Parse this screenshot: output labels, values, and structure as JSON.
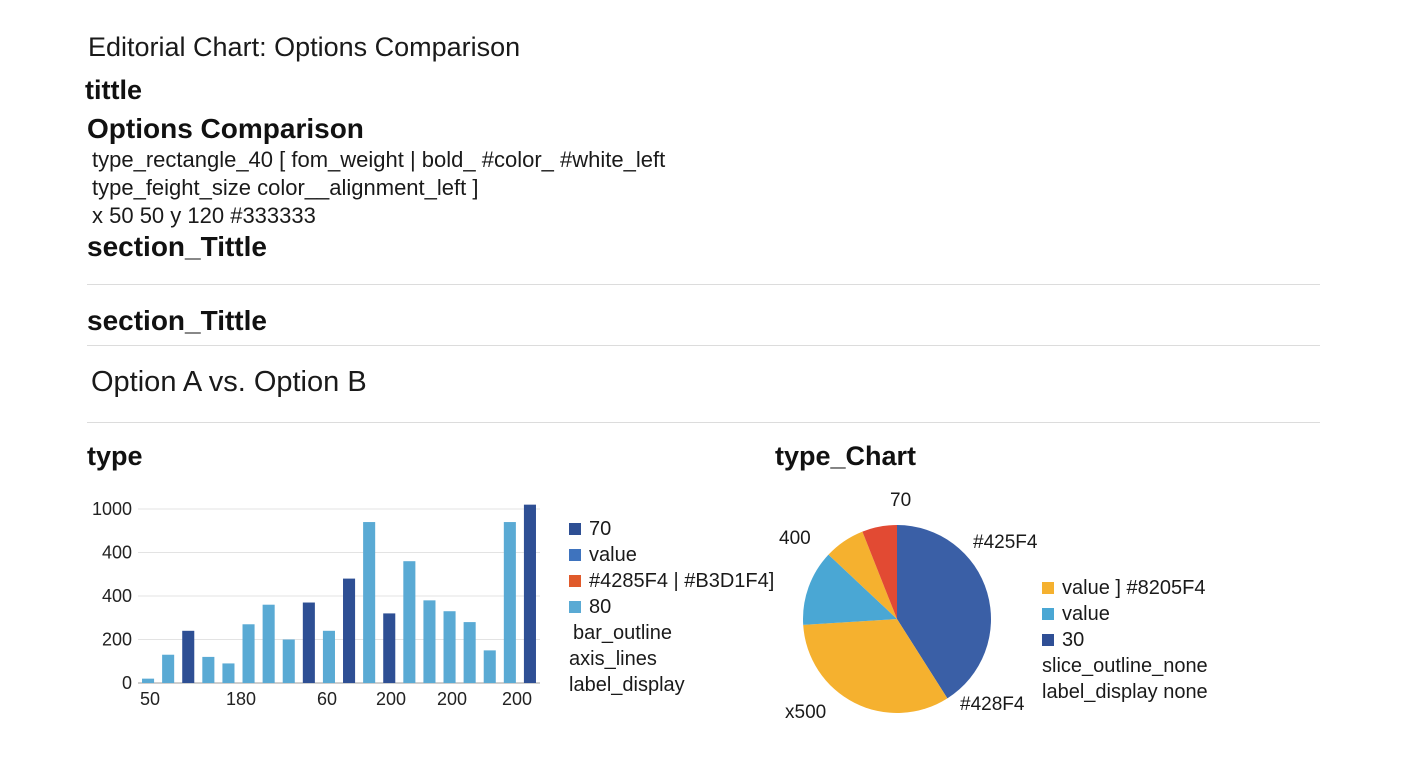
{
  "header": {
    "title": "Editorial Chart: Options Comparison"
  },
  "labels": {
    "tittle": "tittle",
    "main_title": "Options Comparison",
    "spec_lines": [
      "type_rectangle_40 [ fom_weight | bold_ #color_ #white_left",
      "type_feight_size color__alignment_left ]",
      "x 50  50  y 120 #333333"
    ],
    "section_1": "section_Tittle",
    "section_2": "section_Tittle",
    "subtitle": "Option A vs. Option B"
  },
  "bar_panel": {
    "heading": "type",
    "legend": [
      {
        "label": "70",
        "color": "#2E4F94"
      },
      {
        "label": "value",
        "color": "#3E73BE"
      },
      {
        "label": "#4285F4 | #B3D1F4]",
        "color": "#E05A2B"
      },
      {
        "label": "80",
        "color": "#5AAAD4"
      }
    ],
    "notes": [
      "bar_outline",
      "axis_lines",
      "label_display"
    ]
  },
  "pie_panel": {
    "heading": "type_Chart",
    "labels": {
      "top": "70",
      "left": "400",
      "top_right": "#425F4",
      "bottom_right": "#428F4",
      "bottom_left": "x500"
    },
    "legend": [
      {
        "label": "value ]   #8205F4",
        "color": "#F5B12F"
      },
      {
        "label": "value",
        "color": "#4AA7D4"
      },
      {
        "label": "30",
        "color": "#2F4F95"
      }
    ],
    "notes": [
      "slice_outline_none",
      "label_display none"
    ]
  },
  "chart_data": [
    {
      "type": "bar",
      "y_tick_labels": [
        "0",
        "200",
        "400",
        "400",
        "1000"
      ],
      "x_tick_labels": [
        "50",
        "180",
        "60",
        "200",
        "200",
        "200"
      ],
      "values": [
        0.1,
        0.65,
        1.2,
        0.6,
        0.45,
        1.35,
        1.8,
        1.0,
        1.85,
        1.2,
        2.4,
        3.7,
        1.6,
        2.8,
        1.9,
        1.65,
        1.4,
        0.75,
        3.7,
        4.1
      ],
      "value_scale_note": "values in tick-interval units (0 = 0, 1 = 200, 2 = 400, 3 = 400, 4 = 1000 as printed)",
      "bar_colors": [
        "#5AAAD4",
        "#5AAAD4",
        "#2E4F94",
        "#5AAAD4",
        "#5AAAD4",
        "#5AAAD4",
        "#5AAAD4",
        "#5AAAD4",
        "#2E4F94",
        "#5AAAD4",
        "#2E4F94",
        "#5AAAD4",
        "#2E4F94",
        "#5AAAD4",
        "#5AAAD4",
        "#5AAAD4",
        "#5AAAD4",
        "#5AAAD4",
        "#5AAAD4",
        "#2E4F94"
      ],
      "grid": true
    },
    {
      "type": "pie",
      "slices": [
        {
          "value": 41,
          "color": "#3A5FA6"
        },
        {
          "value": 33,
          "color": "#F5B12F"
        },
        {
          "value": 13,
          "color": "#4AA7D4"
        },
        {
          "value": 7,
          "color": "#F5B12F"
        },
        {
          "value": 6,
          "color": "#E24A33"
        }
      ]
    }
  ]
}
